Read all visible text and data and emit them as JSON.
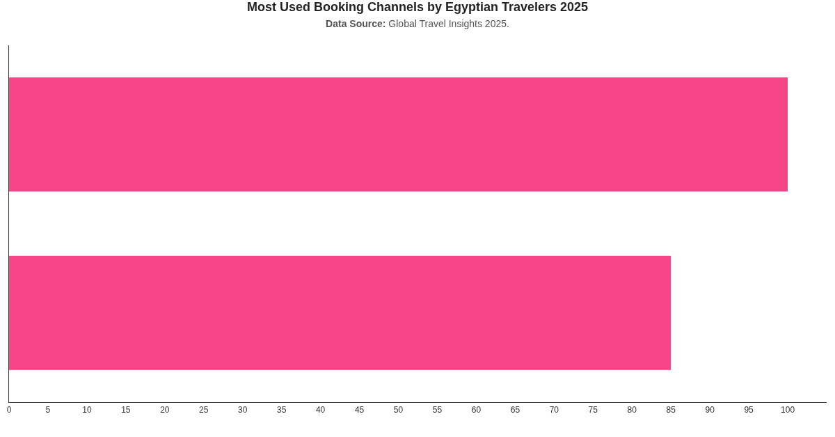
{
  "chart_data": {
    "type": "bar",
    "orientation": "horizontal",
    "title": "Most Used Booking Channels by Egyptian Travelers 2025",
    "subtitle": "Data Source: Global Travel Insights 2025.",
    "categories": [
      null,
      null
    ],
    "values": [
      100,
      85
    ],
    "color": "#f74487",
    "xlim": [
      0,
      105
    ],
    "xticks": [
      0,
      5,
      10,
      15,
      20,
      25,
      30,
      35,
      40,
      45,
      50,
      55,
      60,
      65,
      70,
      75,
      80,
      85,
      90,
      95,
      100
    ],
    "tick_labels": "x"
  }
}
